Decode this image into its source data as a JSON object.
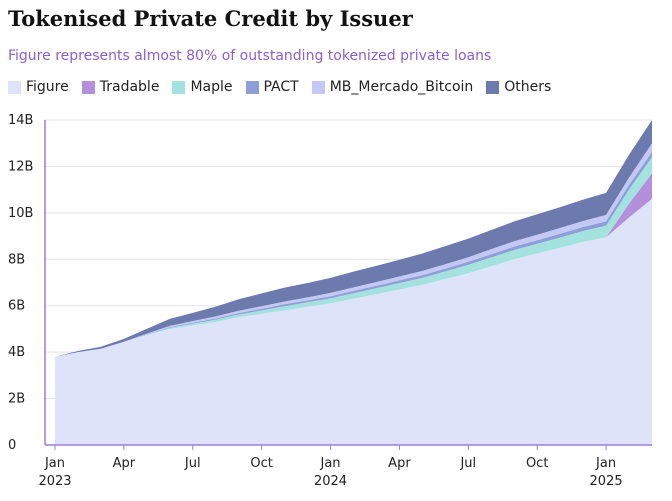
{
  "title": "Tokenised Private Credit by Issuer",
  "subtitle": "Figure represents almost 80% of outstanding tokenized private loans",
  "chart_data": {
    "type": "area",
    "stacked": true,
    "title": "Tokenised Private Credit by Issuer",
    "subtitle": "Figure represents almost 80% of outstanding tokenized private loans",
    "xlabel": "",
    "ylabel": "",
    "x": [
      "2023-01",
      "2023-02",
      "2023-03",
      "2023-04",
      "2023-05",
      "2023-06",
      "2023-07",
      "2023-08",
      "2023-09",
      "2023-10",
      "2023-11",
      "2023-12",
      "2024-01",
      "2024-02",
      "2024-03",
      "2024-04",
      "2024-05",
      "2024-06",
      "2024-07",
      "2024-08",
      "2024-09",
      "2024-10",
      "2024-11",
      "2024-12",
      "2025-01",
      "2025-02",
      "2025-03"
    ],
    "x_ticks": [
      {
        "x": "2023-01",
        "label": "Jan",
        "year": "2023"
      },
      {
        "x": "2023-04",
        "label": "Apr",
        "year": ""
      },
      {
        "x": "2023-07",
        "label": "Jul",
        "year": ""
      },
      {
        "x": "2023-10",
        "label": "Oct",
        "year": ""
      },
      {
        "x": "2024-01",
        "label": "Jan",
        "year": "2024"
      },
      {
        "x": "2024-04",
        "label": "Apr",
        "year": ""
      },
      {
        "x": "2024-07",
        "label": "Jul",
        "year": ""
      },
      {
        "x": "2024-10",
        "label": "Oct",
        "year": ""
      },
      {
        "x": "2025-01",
        "label": "Jan",
        "year": "2025"
      }
    ],
    "y_ticks": [
      0,
      2,
      4,
      6,
      8,
      10,
      12,
      14
    ],
    "y_tick_labels": [
      "0",
      "2B",
      "4B",
      "6B",
      "8B",
      "10B",
      "12B",
      "14B"
    ],
    "ylim": [
      0,
      14
    ],
    "y_unit": "billions USD",
    "grid": true,
    "legend_position": "top-left",
    "series": [
      {
        "name": "Figure",
        "color": "#dde4fa",
        "values": [
          3.8,
          4.0,
          4.15,
          4.45,
          4.75,
          5.0,
          5.15,
          5.3,
          5.5,
          5.65,
          5.8,
          5.95,
          6.1,
          6.3,
          6.5,
          6.7,
          6.9,
          7.15,
          7.4,
          7.7,
          8.0,
          8.25,
          8.5,
          8.75,
          8.95,
          9.8,
          10.6
        ]
      },
      {
        "name": "Tradable",
        "color": "#b48fdc",
        "values": [
          0,
          0,
          0,
          0,
          0,
          0,
          0,
          0,
          0,
          0,
          0,
          0,
          0,
          0,
          0,
          0,
          0,
          0,
          0,
          0,
          0,
          0,
          0,
          0,
          0,
          0.6,
          1.1
        ]
      },
      {
        "name": "Maple",
        "color": "#a4e2e0",
        "values": [
          0,
          0,
          0,
          0,
          0,
          0.05,
          0.08,
          0.1,
          0.12,
          0.15,
          0.18,
          0.2,
          0.22,
          0.24,
          0.26,
          0.28,
          0.3,
          0.33,
          0.36,
          0.38,
          0.4,
          0.42,
          0.44,
          0.47,
          0.5,
          0.6,
          0.7
        ]
      },
      {
        "name": "PACT",
        "color": "#8e9ed6",
        "values": [
          0,
          0,
          0,
          0,
          0.02,
          0.03,
          0.04,
          0.05,
          0.06,
          0.07,
          0.08,
          0.08,
          0.09,
          0.1,
          0.1,
          0.11,
          0.12,
          0.12,
          0.13,
          0.14,
          0.15,
          0.15,
          0.16,
          0.17,
          0.18,
          0.2,
          0.22
        ]
      },
      {
        "name": "MB_Mercado_Bitcoin",
        "color": "#c3c8f6",
        "values": [
          0,
          0,
          0,
          0,
          0.03,
          0.05,
          0.07,
          0.09,
          0.1,
          0.11,
          0.12,
          0.13,
          0.14,
          0.15,
          0.16,
          0.17,
          0.18,
          0.19,
          0.2,
          0.22,
          0.23,
          0.24,
          0.25,
          0.26,
          0.28,
          0.32,
          0.38
        ]
      },
      {
        "name": "Others",
        "color": "#6c7aae",
        "values": [
          0,
          0.05,
          0.08,
          0.12,
          0.2,
          0.3,
          0.35,
          0.42,
          0.5,
          0.55,
          0.6,
          0.62,
          0.65,
          0.68,
          0.7,
          0.72,
          0.75,
          0.78,
          0.8,
          0.82,
          0.85,
          0.88,
          0.9,
          0.92,
          0.95,
          0.98,
          1.0
        ]
      }
    ]
  }
}
